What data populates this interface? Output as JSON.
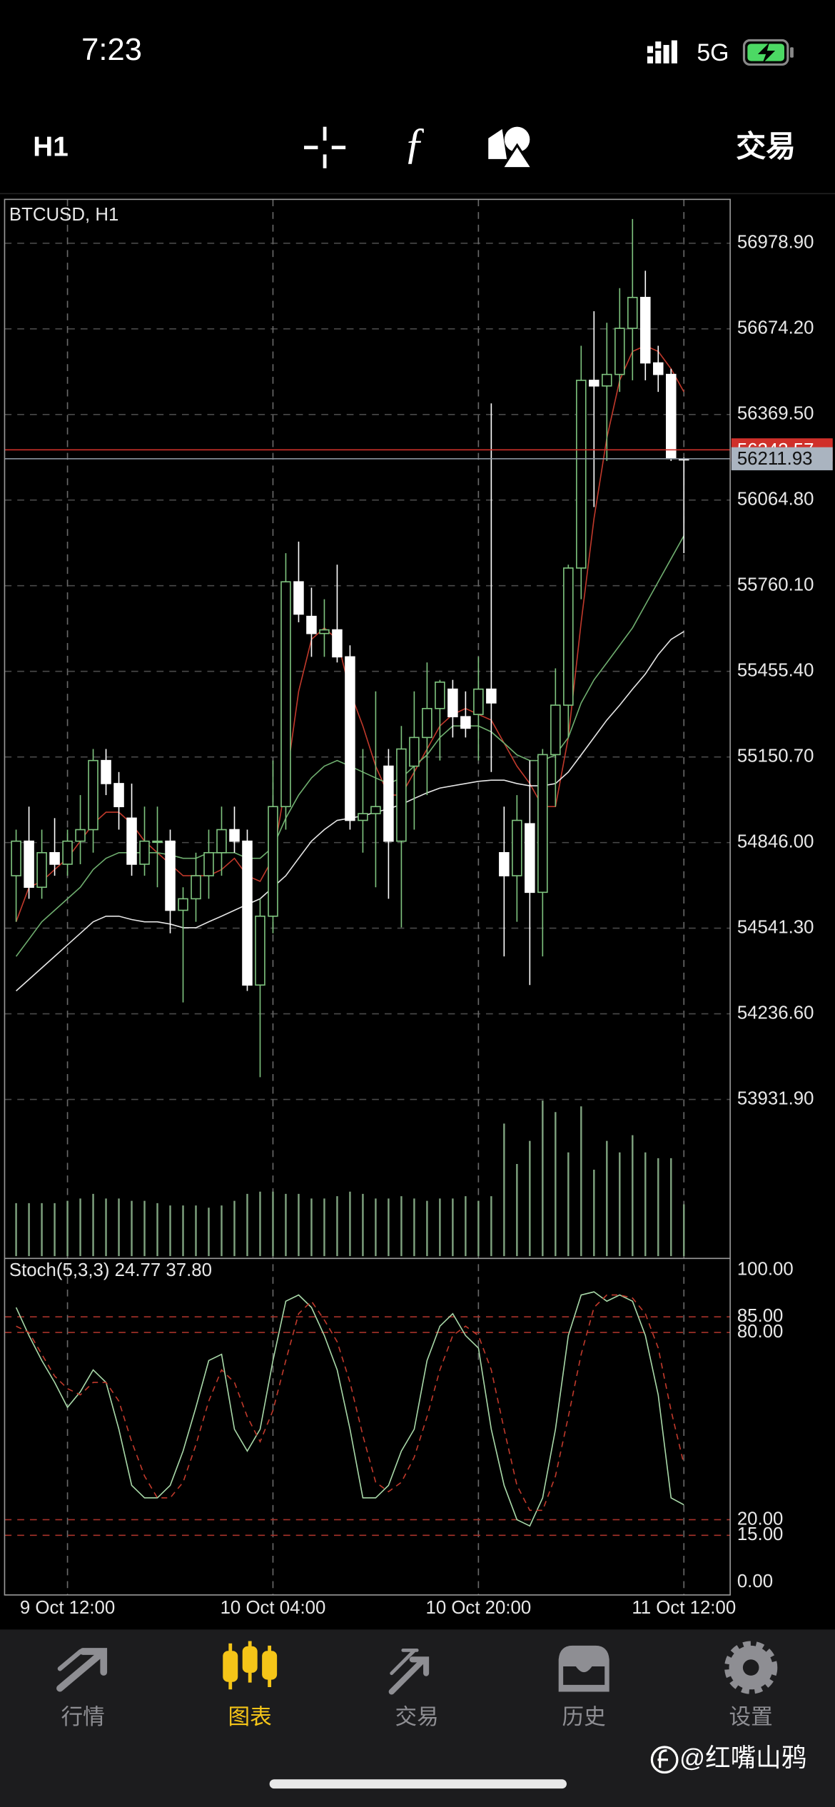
{
  "status_bar": {
    "time": "7:23",
    "network": "5G"
  },
  "toolbar": {
    "timeframe": "H1",
    "trade": "交易"
  },
  "chart_data": [
    {
      "type": "candlestick",
      "title": "BTCUSD, H1",
      "categories": [
        null,
        null,
        null,
        null,
        "9 Oct 12:00",
        null,
        null,
        null,
        null,
        null,
        null,
        null,
        null,
        null,
        null,
        null,
        null,
        null,
        null,
        null,
        "10 Oct 04:00",
        null,
        null,
        null,
        null,
        null,
        null,
        null,
        null,
        null,
        null,
        null,
        null,
        null,
        null,
        null,
        "10 Oct 20:00",
        null,
        null,
        null,
        null,
        null,
        null,
        null,
        null,
        null,
        null,
        null,
        null,
        null,
        null,
        null,
        "11 Oct 12:00"
      ],
      "open": [
        54728,
        54851,
        54687,
        54810,
        54769,
        54851,
        54892,
        55138,
        55056,
        54933,
        54769,
        54851,
        54851,
        54605,
        54646,
        54728,
        54810,
        54892,
        54851,
        54339,
        54584,
        54974,
        55774,
        55651,
        55590,
        55603,
        55507,
        54925,
        54949,
        55118,
        54851,
        55118,
        55220,
        55323,
        55392,
        55294,
        55302,
        55392,
        54810,
        54728,
        54913,
        54669,
        55159,
        55335,
        55823,
        56491,
        56471,
        56512,
        56676,
        56786,
        56553,
        56512,
        56212
      ],
      "high": [
        54892,
        54974,
        54892,
        54933,
        54892,
        55015,
        55179,
        55179,
        55097,
        55056,
        54974,
        54974,
        54892,
        54687,
        54810,
        54892,
        54974,
        54974,
        54892,
        54646,
        55138,
        55876,
        55917,
        55753,
        55712,
        55835,
        55548,
        55179,
        55384,
        55179,
        55261,
        55384,
        55487,
        55425,
        55425,
        55384,
        55507,
        56409,
        54974,
        55015,
        55138,
        55179,
        55466,
        55835,
        56614,
        56737,
        56696,
        56819,
        57065,
        56881,
        56614,
        56532,
        56216
      ],
      "low": [
        54564,
        54646,
        54646,
        54728,
        54728,
        54769,
        54810,
        55015,
        54892,
        54728,
        54728,
        54687,
        54523,
        54277,
        54564,
        54646,
        54728,
        54810,
        54318,
        54011,
        54523,
        54892,
        55630,
        55507,
        55507,
        55487,
        54892,
        54810,
        54687,
        54646,
        54544,
        54892,
        55015,
        55138,
        55220,
        55220,
        55138,
        55097,
        54441,
        54564,
        54339,
        54441,
        54974,
        55220,
        55712,
        56040,
        56204,
        56450,
        56491,
        56491,
        56450,
        56204,
        55876
      ],
      "close": [
        54851,
        54687,
        54810,
        54769,
        54851,
        54892,
        55138,
        55056,
        54974,
        54769,
        54851,
        54851,
        54605,
        54646,
        54728,
        54810,
        54892,
        54851,
        54339,
        54584,
        54974,
        55774,
        55659,
        55590,
        55603,
        55507,
        54925,
        54949,
        54974,
        54851,
        55179,
        55220,
        55323,
        55417,
        55294,
        55253,
        55392,
        55343,
        54728,
        54925,
        54669,
        55159,
        55335,
        55823,
        56491,
        56471,
        56512,
        56676,
        56786,
        56553,
        56512,
        56212,
        56211.93
      ],
      "up_color": "#7fc47f",
      "down_color": "#ffffff",
      "series": [
        {
          "color": "#c0392b",
          "values": [
            54564,
            54687,
            54708,
            54750,
            54790,
            54851,
            54913,
            54954,
            54954,
            54913,
            54851,
            54810,
            54769,
            54728,
            54728,
            54728,
            54750,
            54790,
            54728,
            54708,
            54790,
            55056,
            55384,
            55569,
            55610,
            55569,
            55384,
            55261,
            55118,
            55015,
            55015,
            55097,
            55179,
            55261,
            55302,
            55323,
            55302,
            55282,
            55200,
            55118,
            55056,
            54974,
            54974,
            55220,
            55630,
            55999,
            56286,
            56491,
            56594,
            56614,
            56594,
            56532,
            56450
          ]
        },
        {
          "color": "#6fae6f",
          "values": [
            54441,
            54502,
            54564,
            54605,
            54646,
            54687,
            54750,
            54790,
            54810,
            54810,
            54810,
            54810,
            54802,
            54790,
            54790,
            54810,
            54810,
            54810,
            54790,
            54790,
            54830,
            54933,
            55015,
            55076,
            55118,
            55138,
            55118,
            55097,
            55076,
            55056,
            55076,
            55118,
            55158,
            55220,
            55261,
            55261,
            55261,
            55240,
            55200,
            55158,
            55138,
            55138,
            55158,
            55220,
            55343,
            55425,
            55486,
            55548,
            55610,
            55692,
            55774,
            55856,
            55938
          ]
        },
        {
          "color": "#e6e6e6",
          "values": [
            54318,
            54359,
            54400,
            54441,
            54482,
            54523,
            54564,
            54584,
            54584,
            54572,
            54564,
            54564,
            54556,
            54543,
            54543,
            54564,
            54584,
            54605,
            54626,
            54646,
            54687,
            54728,
            54790,
            54851,
            54892,
            54925,
            54933,
            54941,
            54954,
            54966,
            54982,
            55003,
            55023,
            55040,
            55048,
            55056,
            55064,
            55068,
            55068,
            55056,
            55048,
            55048,
            55056,
            55097,
            55158,
            55220,
            55282,
            55335,
            55392,
            55446,
            55515,
            55569,
            55597
          ]
        }
      ],
      "volumes": [
        46,
        46,
        46,
        46,
        48,
        50,
        54,
        50,
        50,
        48,
        48,
        46,
        44,
        44,
        44,
        42,
        44,
        48,
        54,
        56,
        56,
        54,
        54,
        50,
        50,
        52,
        56,
        54,
        50,
        50,
        52,
        50,
        48,
        50,
        50,
        52,
        48,
        52,
        115,
        80,
        100,
        135,
        125,
        90,
        130,
        75,
        100,
        90,
        105,
        90,
        85,
        85,
        45
      ],
      "volume_color": "#7fa37f",
      "bid": 56211.93,
      "ask": 56243.57,
      "ylim": [
        53366,
        57135
      ],
      "yticks": [
        {
          "value": 56978.9,
          "label": "56978.90"
        },
        {
          "value": 56674.2,
          "label": "56674.20"
        },
        {
          "value": 56369.5,
          "label": "56369.50"
        },
        {
          "value": 56064.8,
          "label": "56064.80"
        },
        {
          "value": 55760.1,
          "label": "55760.10"
        },
        {
          "value": 55455.4,
          "label": "55455.40"
        },
        {
          "value": 55150.7,
          "label": "55150.70"
        },
        {
          "value": 54846,
          "label": "54846.00"
        },
        {
          "value": 54541.3,
          "label": "54541.30"
        },
        {
          "value": 54236.6,
          "label": "54236.60"
        },
        {
          "value": 53931.9,
          "label": "53931.90"
        }
      ],
      "grid": true
    },
    {
      "type": "line",
      "title": "Stoch(5,3,3) 24.77 37.80",
      "series": [
        {
          "color": "#a8d8a8",
          "values": [
            88,
            79,
            71,
            64,
            56,
            61,
            68,
            64,
            49,
            31,
            27,
            27,
            31,
            42,
            56,
            71,
            73,
            49,
            42,
            49,
            71,
            90,
            92,
            88,
            79,
            68,
            49,
            27,
            27,
            31,
            42,
            49,
            71,
            82,
            86,
            79,
            75,
            49,
            31,
            20,
            18,
            27,
            49,
            79,
            92,
            93,
            90,
            92,
            90,
            79,
            60,
            27,
            24.77
          ]
        },
        {
          "color": "#c0392b",
          "dashed": true,
          "values": [
            82,
            80,
            73,
            66,
            62,
            60,
            64,
            64,
            58,
            45,
            34,
            27,
            27,
            32,
            44,
            58,
            68,
            64,
            53,
            45,
            55,
            71,
            86,
            90,
            84,
            77,
            64,
            47,
            32,
            29,
            32,
            40,
            53,
            68,
            79,
            82,
            79,
            68,
            49,
            31,
            23,
            23,
            34,
            53,
            73,
            88,
            92,
            92,
            91,
            86,
            75,
            55,
            37.8
          ]
        }
      ],
      "ylim": [
        -4.1,
        103.7
      ],
      "yticks": [
        {
          "value": 100,
          "label": "100.00"
        },
        {
          "value": 85,
          "label": "85.00"
        },
        {
          "value": 80,
          "label": "80.00"
        },
        {
          "value": 20,
          "label": "20.00"
        },
        {
          "value": 15,
          "label": "15.00"
        },
        {
          "value": 0,
          "label": "0.00"
        }
      ]
    }
  ],
  "tab_bar": {
    "items": [
      "行情",
      "图表",
      "交易",
      "历史",
      "设置"
    ],
    "active": 1
  },
  "watermark": "@红嘴山鸦"
}
